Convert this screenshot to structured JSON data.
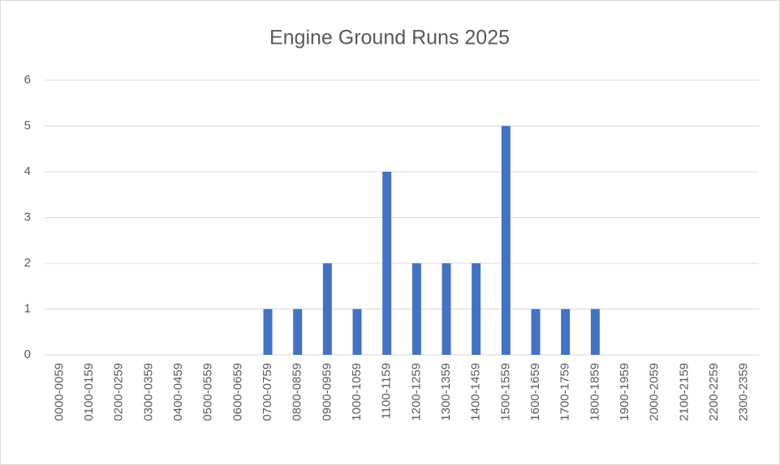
{
  "chart_data": {
    "type": "bar",
    "title": "Engine Ground Runs 2025",
    "categories": [
      "0000-0059",
      "0100-0159",
      "0200-0259",
      "0300-0359",
      "0400-0459",
      "0500-0559",
      "0600-0659",
      "0700-0759",
      "0800-0859",
      "0900-0959",
      "1000-1059",
      "1100-1159",
      "1200-1259",
      "1300-1359",
      "1400-1459",
      "1500-1559",
      "1600-1659",
      "1700-1759",
      "1800-1859",
      "1900-1959",
      "2000-2059",
      "2100-2159",
      "2200-2259",
      "2300-2359"
    ],
    "values": [
      0,
      0,
      0,
      0,
      0,
      0,
      0,
      1,
      1,
      2,
      1,
      4,
      2,
      2,
      2,
      5,
      1,
      1,
      1,
      0,
      0,
      0,
      0,
      0
    ],
    "color": "#4472c4",
    "ylim": [
      0,
      6
    ],
    "yticks": [
      0,
      1,
      2,
      3,
      4,
      5,
      6
    ],
    "grid": true
  }
}
